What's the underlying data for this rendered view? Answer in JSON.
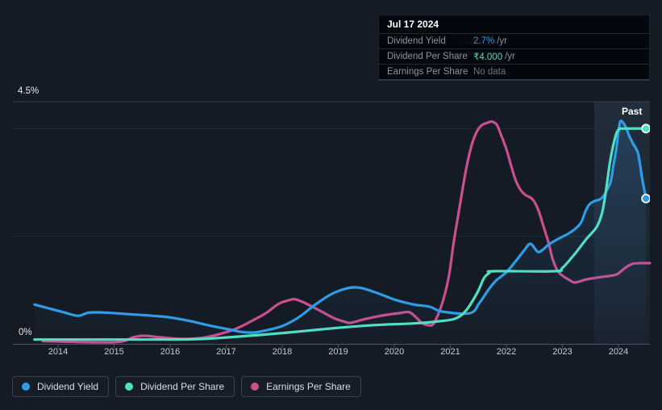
{
  "colors": {
    "dividend_yield": "#2e9de6",
    "dividend_per_share": "#4fdfc4",
    "earnings_per_share": "#c94f90",
    "no_data_text": "#6d747e",
    "background": "#151b24",
    "grid": "#232a35",
    "grid_top": "#39414d",
    "axis": "#4d5763",
    "past_band": "#7db1eb"
  },
  "tooltip": {
    "date": "Jul 17 2024",
    "rows": [
      {
        "label": "Dividend Yield",
        "value": "2.7%",
        "suffix": "/yr",
        "color": "#2e9de6"
      },
      {
        "label": "Dividend Per Share",
        "value": "₹4.000",
        "suffix": "/yr",
        "color": "#4fdfc4"
      },
      {
        "label": "Earnings Per Share",
        "value": "No data",
        "suffix": "",
        "color": "#6d747e"
      }
    ]
  },
  "chart": {
    "past_label": "Past",
    "y_axis": {
      "max_label": "4.5%",
      "min_label": "0%"
    },
    "x_ticks": [
      "2014",
      "2015",
      "2016",
      "2017",
      "2018",
      "2019",
      "2020",
      "2021",
      "2022",
      "2023",
      "2024"
    ]
  },
  "legend": {
    "items": [
      {
        "id": "dividend_yield",
        "label": "Dividend Yield"
      },
      {
        "id": "dividend_per_share",
        "label": "Dividend Per Share"
      },
      {
        "id": "earnings_per_share",
        "label": "Earnings Per Share"
      }
    ]
  },
  "chart_data": {
    "type": "line",
    "title": "Dividend history",
    "x_range": [
      2013.5,
      2024.56
    ],
    "y_range": [
      0,
      4.5
    ],
    "y_unit": "percent (Dividend Yield axis; other series plotted on same visual scale, Dividend Per Share in ₹)",
    "gridline_values": [
      2,
      4
    ],
    "top_boundary_value": 4.5,
    "past_band_start": 2023.565,
    "grid": true,
    "legend_position": "bottom-left",
    "series": [
      {
        "name": "Dividend Yield",
        "id": "dividend_yield",
        "end_dot": true,
        "area_fill": true,
        "points": [
          [
            2013.58,
            0.73
          ],
          [
            2013.83,
            0.66
          ],
          [
            2014.12,
            0.58
          ],
          [
            2014.36,
            0.52
          ],
          [
            2014.55,
            0.58
          ],
          [
            2014.83,
            0.58
          ],
          [
            2015.27,
            0.55
          ],
          [
            2015.7,
            0.52
          ],
          [
            2016.0,
            0.49
          ],
          [
            2016.37,
            0.42
          ],
          [
            2016.7,
            0.34
          ],
          [
            2017.04,
            0.27
          ],
          [
            2017.28,
            0.22
          ],
          [
            2017.5,
            0.21
          ],
          [
            2017.71,
            0.25
          ],
          [
            2018.0,
            0.33
          ],
          [
            2018.29,
            0.49
          ],
          [
            2018.58,
            0.72
          ],
          [
            2018.91,
            0.94
          ],
          [
            2019.29,
            1.05
          ],
          [
            2019.65,
            0.96
          ],
          [
            2020.01,
            0.82
          ],
          [
            2020.35,
            0.73
          ],
          [
            2020.63,
            0.69
          ],
          [
            2020.85,
            0.6
          ],
          [
            2021.35,
            0.57
          ],
          [
            2021.52,
            0.76
          ],
          [
            2021.67,
            0.99
          ],
          [
            2021.81,
            1.17
          ],
          [
            2022.0,
            1.33
          ],
          [
            2022.17,
            1.54
          ],
          [
            2022.32,
            1.74
          ],
          [
            2022.43,
            1.86
          ],
          [
            2022.56,
            1.71
          ],
          [
            2022.65,
            1.75
          ],
          [
            2022.75,
            1.84
          ],
          [
            2022.89,
            1.93
          ],
          [
            2023.0,
            1.99
          ],
          [
            2023.11,
            2.05
          ],
          [
            2023.22,
            2.13
          ],
          [
            2023.33,
            2.25
          ],
          [
            2023.41,
            2.46
          ],
          [
            2023.48,
            2.59
          ],
          [
            2023.57,
            2.65
          ],
          [
            2023.66,
            2.68
          ],
          [
            2023.73,
            2.74
          ],
          [
            2023.78,
            2.83
          ],
          [
            2023.86,
            3.01
          ],
          [
            2023.91,
            3.31
          ],
          [
            2023.96,
            3.61
          ],
          [
            2024.0,
            3.94
          ],
          [
            2024.04,
            4.14
          ],
          [
            2024.12,
            4.05
          ],
          [
            2024.19,
            3.87
          ],
          [
            2024.26,
            3.72
          ],
          [
            2024.35,
            3.54
          ],
          [
            2024.42,
            3.09
          ],
          [
            2024.49,
            2.7
          ]
        ]
      },
      {
        "name": "Dividend Per Share",
        "id": "dividend_per_share",
        "end_dot": true,
        "area_fill": false,
        "points": [
          [
            2013.58,
            0.08
          ],
          [
            2015.0,
            0.08
          ],
          [
            2016.0,
            0.08
          ],
          [
            2016.56,
            0.09
          ],
          [
            2017.03,
            0.12
          ],
          [
            2018.0,
            0.2
          ],
          [
            2018.91,
            0.29
          ],
          [
            2019.68,
            0.35
          ],
          [
            2020.35,
            0.38
          ],
          [
            2020.81,
            0.42
          ],
          [
            2021.09,
            0.47
          ],
          [
            2021.28,
            0.62
          ],
          [
            2021.48,
            0.95
          ],
          [
            2021.6,
            1.22
          ],
          [
            2021.7,
            1.32
          ],
          [
            2021.77,
            1.35
          ],
          [
            2022.86,
            1.35
          ],
          [
            2023.0,
            1.41
          ],
          [
            2023.22,
            1.67
          ],
          [
            2023.42,
            1.94
          ],
          [
            2023.61,
            2.17
          ],
          [
            2023.71,
            2.44
          ],
          [
            2023.78,
            2.87
          ],
          [
            2023.84,
            3.32
          ],
          [
            2023.9,
            3.66
          ],
          [
            2023.96,
            3.9
          ],
          [
            2024.01,
            3.99
          ],
          [
            2024.07,
            4.0
          ],
          [
            2024.49,
            4.0
          ]
        ]
      },
      {
        "name": "Earnings Per Share",
        "id": "earnings_per_share",
        "end_dot": false,
        "area_fill": false,
        "points": [
          [
            2013.73,
            0.05
          ],
          [
            2015.0,
            0.03
          ],
          [
            2015.34,
            0.12
          ],
          [
            2015.53,
            0.15
          ],
          [
            2015.84,
            0.12
          ],
          [
            2016.24,
            0.09
          ],
          [
            2016.63,
            0.12
          ],
          [
            2017.04,
            0.23
          ],
          [
            2017.28,
            0.33
          ],
          [
            2017.5,
            0.45
          ],
          [
            2017.71,
            0.57
          ],
          [
            2017.93,
            0.74
          ],
          [
            2018.12,
            0.81
          ],
          [
            2018.22,
            0.83
          ],
          [
            2018.36,
            0.78
          ],
          [
            2018.5,
            0.71
          ],
          [
            2018.72,
            0.59
          ],
          [
            2018.94,
            0.47
          ],
          [
            2019.12,
            0.41
          ],
          [
            2019.22,
            0.39
          ],
          [
            2019.44,
            0.45
          ],
          [
            2019.65,
            0.5
          ],
          [
            2019.87,
            0.54
          ],
          [
            2020.09,
            0.57
          ],
          [
            2020.26,
            0.59
          ],
          [
            2020.37,
            0.51
          ],
          [
            2020.49,
            0.39
          ],
          [
            2020.59,
            0.35
          ],
          [
            2020.69,
            0.36
          ],
          [
            2020.78,
            0.54
          ],
          [
            2020.88,
            0.84
          ],
          [
            2020.98,
            1.29
          ],
          [
            2021.06,
            1.89
          ],
          [
            2021.17,
            2.57
          ],
          [
            2021.28,
            3.24
          ],
          [
            2021.38,
            3.69
          ],
          [
            2021.48,
            3.96
          ],
          [
            2021.57,
            4.07
          ],
          [
            2021.67,
            4.11
          ],
          [
            2021.74,
            4.13
          ],
          [
            2021.83,
            4.07
          ],
          [
            2021.91,
            3.87
          ],
          [
            2022.0,
            3.62
          ],
          [
            2022.09,
            3.29
          ],
          [
            2022.17,
            3.03
          ],
          [
            2022.26,
            2.85
          ],
          [
            2022.35,
            2.76
          ],
          [
            2022.43,
            2.72
          ],
          [
            2022.5,
            2.64
          ],
          [
            2022.58,
            2.46
          ],
          [
            2022.66,
            2.19
          ],
          [
            2022.75,
            1.89
          ],
          [
            2022.83,
            1.56
          ],
          [
            2022.92,
            1.35
          ],
          [
            2023.01,
            1.26
          ],
          [
            2023.12,
            1.19
          ],
          [
            2023.22,
            1.14
          ],
          [
            2023.4,
            1.19
          ],
          [
            2023.61,
            1.23
          ],
          [
            2023.83,
            1.26
          ],
          [
            2023.97,
            1.29
          ],
          [
            2024.07,
            1.37
          ],
          [
            2024.16,
            1.44
          ],
          [
            2024.26,
            1.49
          ],
          [
            2024.4,
            1.5
          ],
          [
            2024.56,
            1.5
          ]
        ]
      }
    ]
  }
}
